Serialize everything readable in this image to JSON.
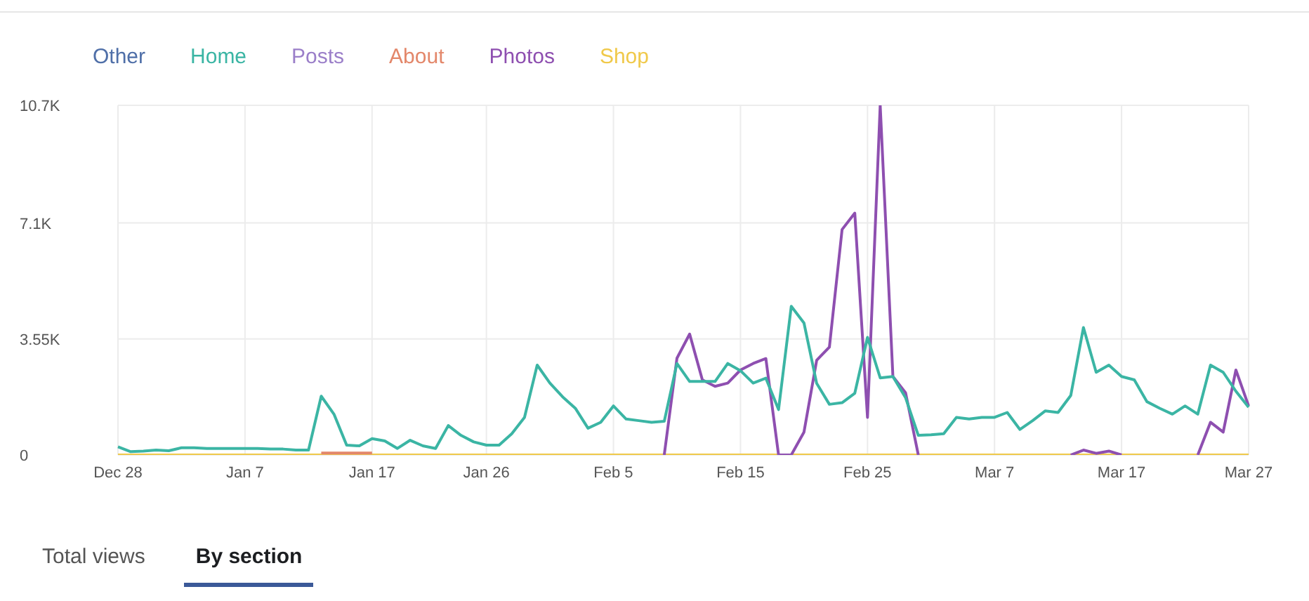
{
  "chart_data": {
    "type": "line",
    "categories": [
      "Dec 28",
      null,
      null,
      null,
      null,
      null,
      null,
      null,
      null,
      null,
      "Jan 7",
      null,
      null,
      null,
      null,
      null,
      null,
      null,
      null,
      null,
      "Jan 17",
      null,
      null,
      null,
      null,
      null,
      null,
      null,
      null,
      "Jan 26",
      null,
      null,
      null,
      null,
      null,
      null,
      null,
      null,
      null,
      "Feb 5",
      null,
      null,
      null,
      null,
      null,
      null,
      null,
      null,
      null,
      "Feb 15",
      null,
      null,
      null,
      null,
      null,
      null,
      null,
      null,
      null,
      "Feb 25",
      null,
      null,
      null,
      null,
      null,
      null,
      null,
      null,
      null,
      "Mar 7",
      null,
      null,
      null,
      null,
      null,
      null,
      null,
      null,
      null,
      "Mar 17",
      null,
      null,
      null,
      null,
      null,
      null,
      null,
      null,
      null,
      "Mar 27"
    ],
    "series": [
      {
        "name": "Other",
        "color": "#4f6fa8",
        "values": [
          null,
          null,
          null,
          null,
          null,
          null,
          null,
          null,
          null,
          null,
          null,
          null,
          null,
          null,
          null,
          null,
          null,
          null,
          null,
          null,
          null,
          null,
          null,
          null,
          null,
          null,
          null,
          null,
          null,
          null,
          null,
          null,
          null,
          null,
          null,
          null,
          null,
          null,
          null,
          null,
          null,
          null,
          null,
          null,
          null,
          null,
          null,
          null,
          null,
          null,
          null,
          null,
          null,
          null,
          null,
          null,
          null,
          null,
          null,
          null,
          null,
          null,
          null,
          null,
          null,
          null,
          null,
          null,
          null,
          null,
          null,
          null,
          null,
          null,
          null,
          null,
          null,
          null,
          null,
          null,
          null,
          null,
          null,
          null,
          null,
          null,
          null,
          null,
          null,
          null
        ]
      },
      {
        "name": "Home",
        "color": "#3bb5a4",
        "values": [
          250,
          100,
          120,
          150,
          130,
          220,
          220,
          200,
          200,
          200,
          200,
          200,
          180,
          180,
          150,
          150,
          1800,
          1250,
          300,
          280,
          500,
          430,
          200,
          450,
          280,
          200,
          900,
          600,
          400,
          300,
          300,
          650,
          1150,
          2750,
          2200,
          1780,
          1430,
          820,
          1000,
          1500,
          1100,
          1050,
          1000,
          1030,
          2800,
          2250,
          2250,
          2250,
          2800,
          2580,
          2200,
          2350,
          1390,
          4550,
          4040,
          2190,
          1550,
          1600,
          1890,
          3600,
          2360,
          2400,
          1750,
          600,
          620,
          650,
          1150,
          1100,
          1150,
          1150,
          1300,
          780,
          1050,
          1350,
          1300,
          1820,
          3900,
          2530,
          2750,
          2400,
          2300,
          1630,
          1430,
          1250,
          1500,
          1250,
          2750,
          2530,
          1950,
          1460
        ]
      },
      {
        "name": "Posts",
        "color": "#9b7fc9",
        "values": [
          null,
          null,
          null,
          null,
          null,
          null,
          null,
          null,
          null,
          null,
          null,
          null,
          null,
          null,
          null,
          null,
          null,
          null,
          null,
          null,
          null,
          null,
          null,
          null,
          null,
          null,
          null,
          null,
          null,
          null,
          null,
          null,
          null,
          null,
          null,
          null,
          null,
          null,
          null,
          null,
          null,
          null,
          null,
          null,
          null,
          null,
          null,
          null,
          null,
          null,
          null,
          null,
          null,
          null,
          null,
          null,
          null,
          null,
          null,
          null,
          null,
          null,
          null,
          null,
          null,
          null,
          null,
          null,
          null,
          null,
          null,
          null,
          null,
          null,
          null,
          null,
          null,
          null,
          null,
          null,
          null,
          null,
          null,
          null,
          null,
          null,
          null,
          null,
          null,
          null
        ]
      },
      {
        "name": "About",
        "color": "#e3876a",
        "values": [
          null,
          null,
          null,
          null,
          null,
          null,
          null,
          null,
          null,
          null,
          null,
          null,
          null,
          null,
          null,
          null,
          60,
          60,
          60,
          60,
          60,
          null,
          null,
          null,
          null,
          null,
          null,
          null,
          null,
          null,
          null,
          null,
          null,
          null,
          null,
          null,
          null,
          null,
          null,
          null,
          null,
          null,
          null,
          null,
          null,
          null,
          null,
          null,
          null,
          null,
          null,
          null,
          null,
          null,
          null,
          null,
          null,
          null,
          null,
          null,
          null,
          null,
          null,
          null,
          null,
          null,
          null,
          null,
          null,
          null,
          null,
          null,
          null,
          null,
          null,
          null,
          null,
          null,
          null,
          null,
          null,
          null,
          null,
          null,
          null,
          null,
          null,
          null,
          null,
          null
        ]
      },
      {
        "name": "Photos",
        "color": "#8e4fb0",
        "values": [
          null,
          null,
          null,
          null,
          null,
          null,
          null,
          null,
          null,
          null,
          null,
          null,
          null,
          null,
          null,
          null,
          null,
          null,
          null,
          null,
          null,
          null,
          null,
          null,
          null,
          null,
          null,
          null,
          null,
          null,
          null,
          null,
          null,
          null,
          null,
          null,
          null,
          null,
          null,
          null,
          null,
          null,
          null,
          0,
          2960,
          3700,
          2300,
          2100,
          2200,
          2600,
          2800,
          2950,
          0,
          0,
          700,
          2900,
          3300,
          6900,
          7400,
          1150,
          10700,
          2400,
          1900,
          0,
          null,
          null,
          null,
          null,
          null,
          null,
          null,
          null,
          null,
          null,
          null,
          0,
          150,
          50,
          120,
          0,
          null,
          null,
          null,
          null,
          null,
          0,
          1000,
          700,
          2600,
          1500
        ]
      },
      {
        "name": "Shop",
        "color": "#f0c94a",
        "values": [
          0,
          0,
          0,
          0,
          0,
          0,
          0,
          0,
          0,
          0,
          0,
          0,
          0,
          0,
          0,
          0,
          0,
          0,
          0,
          0,
          0,
          0,
          0,
          0,
          0,
          0,
          0,
          0,
          0,
          0,
          0,
          0,
          0,
          0,
          0,
          0,
          0,
          0,
          0,
          0,
          0,
          0,
          0,
          0,
          0,
          0,
          0,
          0,
          0,
          0,
          0,
          0,
          0,
          0,
          0,
          0,
          0,
          0,
          0,
          0,
          0,
          0,
          0,
          0,
          0,
          0,
          0,
          0,
          0,
          0,
          0,
          0,
          0,
          0,
          0,
          0,
          0,
          0,
          0,
          0,
          0,
          0,
          0,
          0,
          0,
          0,
          0,
          0,
          0,
          0
        ]
      }
    ],
    "ylim": [
      0,
      10700
    ],
    "yticks": [
      0,
      {
        "value": 3550,
        "label": "3.55K"
      },
      {
        "value": 7100,
        "label": "7.1K"
      },
      {
        "value": 10700,
        "label": "10.7K"
      }
    ],
    "grid": true,
    "legend": "top left",
    "marker": "none",
    "line_style": "solid",
    "annotations": [
      "Total views",
      "By section"
    ]
  }
}
